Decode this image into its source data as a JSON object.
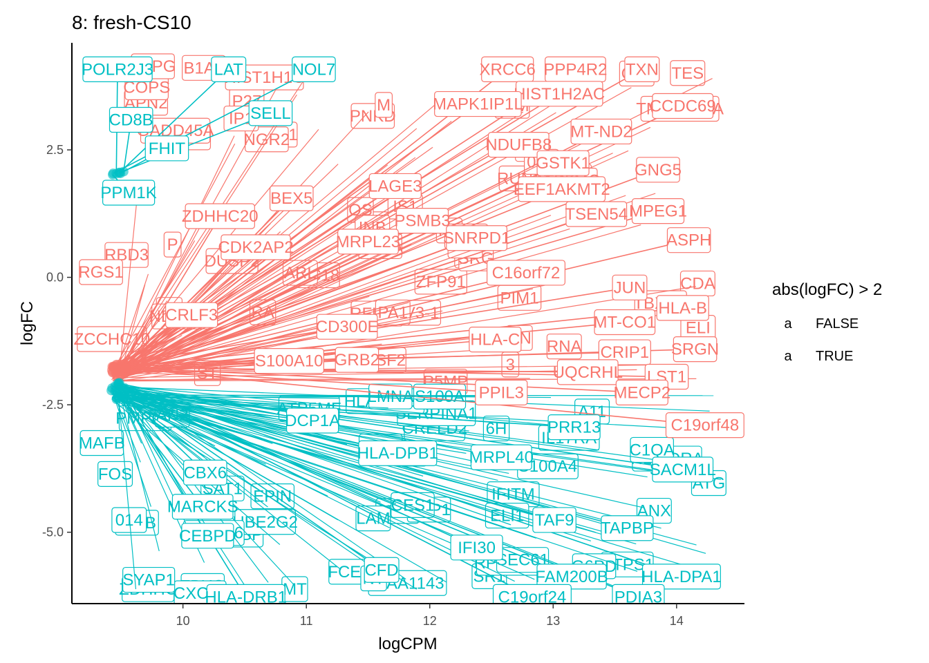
{
  "chart_data": {
    "type": "scatter",
    "title": "8: fresh-CS10",
    "xlabel": "logCPM",
    "ylabel": "logFC",
    "xlim": [
      9.1,
      14.55
    ],
    "ylim": [
      -6.4,
      4.6
    ],
    "x_ticks": [
      10,
      11,
      12,
      13,
      14
    ],
    "y_ticks": [
      2.5,
      0.0,
      -2.5,
      -5.0
    ],
    "x_tick_labels": [
      "10",
      "11",
      "12",
      "13",
      "14"
    ],
    "y_tick_labels": [
      "2.5",
      "0.0",
      "-2.5",
      "-5.0"
    ],
    "grid": false,
    "legend_position": "right",
    "legend": {
      "title": "abs(logFC) > 2",
      "entries": [
        {
          "key": "a",
          "label": "FALSE",
          "color": "#F8766D"
        },
        {
          "key": "a",
          "label": "TRUE",
          "color": "#00BFC4"
        }
      ]
    },
    "series": [
      {
        "group": "FALSE",
        "color": "#F8766D",
        "points": [
          {
            "gene": "XRCC6",
            "x": 12.63,
            "y": 4.08
          },
          {
            "gene": "PPP4R2",
            "x": 13.18,
            "y": 4.08
          },
          {
            "gene": "TXN",
            "x": 13.72,
            "y": 4.08
          },
          {
            "gene": "HIST1H2AC",
            "x": 13.05,
            "y": 3.6
          },
          {
            "gene": "MAPK1IP1L",
            "x": 12.39,
            "y": 3.4
          },
          {
            "gene": "CCDC69",
            "x": 14.05,
            "y": 3.36
          },
          {
            "gene": "MT-ND2",
            "x": 13.39,
            "y": 2.86
          },
          {
            "gene": "NDUFB8",
            "x": 12.72,
            "y": 2.6
          },
          {
            "gene": "GSTK1",
            "x": 13.08,
            "y": 2.24
          },
          {
            "gene": "GNG5",
            "x": 13.85,
            "y": 2.11
          },
          {
            "gene": "LAGE3",
            "x": 11.72,
            "y": 1.79
          },
          {
            "gene": "EEF1AKMT2",
            "x": 13.07,
            "y": 1.73
          },
          {
            "gene": "BEX5",
            "x": 10.88,
            "y": 1.55
          },
          {
            "gene": "PSMB3",
            "x": 11.94,
            "y": 1.11
          },
          {
            "gene": "MPEG1",
            "x": 13.85,
            "y": 1.3
          },
          {
            "gene": "ZDHHC20",
            "x": 10.3,
            "y": 1.2
          },
          {
            "gene": "TSEN54",
            "x": 13.35,
            "y": 1.24
          },
          {
            "gene": "MRPL23",
            "x": 11.5,
            "y": 0.7
          },
          {
            "gene": "SNRPD1",
            "x": 12.38,
            "y": 0.77
          },
          {
            "gene": "ASPH",
            "x": 14.1,
            "y": 0.73
          },
          {
            "gene": "CDK2AP2",
            "x": 10.59,
            "y": 0.59
          },
          {
            "gene": "C16orf72",
            "x": 12.78,
            "y": 0.09
          },
          {
            "gene": "JUN",
            "x": 13.62,
            "y": -0.2
          },
          {
            "gene": "HLA-B",
            "x": 14.05,
            "y": -0.6
          },
          {
            "gene": "CRLF3",
            "x": 10.07,
            "y": -0.74
          },
          {
            "gene": "CD300E",
            "x": 11.33,
            "y": -0.97
          },
          {
            "gene": "MT-CO1",
            "x": 13.58,
            "y": -0.88
          },
          {
            "gene": "HLA-C",
            "x": 12.53,
            "y": -1.22
          },
          {
            "gene": "SRGN",
            "x": 14.15,
            "y": -1.41
          },
          {
            "gene": "CRIP1",
            "x": 13.58,
            "y": -1.47
          },
          {
            "gene": "S100A10",
            "x": 10.86,
            "y": -1.64
          },
          {
            "gene": "GRB2",
            "x": 11.41,
            "y": -1.62
          },
          {
            "gene": "UQCRHL",
            "x": 13.28,
            "y": -1.86
          },
          {
            "gene": "LST1",
            "x": 13.92,
            "y": -1.95
          },
          {
            "gene": "PPIL3",
            "x": 12.58,
            "y": -2.26
          },
          {
            "gene": "MECP2",
            "x": 13.72,
            "y": -2.26
          },
          {
            "gene": "C19orf48",
            "x": 14.23,
            "y": -2.9
          }
        ]
      },
      {
        "group": "TRUE",
        "color": "#00BFC4",
        "points": [
          {
            "gene": "POLR2J3",
            "x": 9.47,
            "y": 4.08
          },
          {
            "gene": "LAT",
            "x": 10.37,
            "y": 4.08
          },
          {
            "gene": "NOL7",
            "x": 11.06,
            "y": 4.08
          },
          {
            "gene": "CD8B",
            "x": 9.58,
            "y": 3.09
          },
          {
            "gene": "SELL",
            "x": 10.71,
            "y": 3.22
          },
          {
            "gene": "FHIT",
            "x": 9.87,
            "y": 2.53
          },
          {
            "gene": "PPM1K",
            "x": 9.56,
            "y": 1.66
          },
          {
            "gene": "DCP1A",
            "x": 11.05,
            "y": -2.81
          },
          {
            "gene": "PRR13",
            "x": 13.17,
            "y": -2.94
          },
          {
            "gene": "HLA-DPB1",
            "x": 11.74,
            "y": -3.45
          },
          {
            "gene": "MRPL40",
            "x": 12.58,
            "y": -3.53
          },
          {
            "gene": "SACM1L",
            "x": 14.05,
            "y": -3.77
          },
          {
            "gene": "CBX6",
            "x": 10.18,
            "y": -3.83
          },
          {
            "gene": "MARCKS",
            "x": 10.16,
            "y": -4.5
          },
          {
            "gene": "TAF9",
            "x": 13.01,
            "y": -4.76
          },
          {
            "gene": "TAPBP",
            "x": 13.6,
            "y": -4.92
          },
          {
            "gene": "CEBPD",
            "x": 10.2,
            "y": -5.07
          },
          {
            "gene": "IFI30",
            "x": 12.38,
            "y": -5.3
          },
          {
            "gene": "CFD",
            "x": 11.61,
            "y": -5.74
          },
          {
            "gene": "FAM200B",
            "x": 13.15,
            "y": -5.87
          },
          {
            "gene": "HLA-DPA1",
            "x": 14.04,
            "y": -5.87
          },
          {
            "gene": "HLA-DRB1",
            "x": 10.51,
            "y": -6.27
          },
          {
            "gene": "C19orf24",
            "x": 12.83,
            "y": -6.27
          },
          {
            "gene": "PDIA3",
            "x": 13.69,
            "y": -6.27
          }
        ]
      }
    ],
    "annotations": {
      "description_note": "",
      "background_labels_false": [
        "IS1",
        "AK",
        "NA",
        "APN2",
        "LS",
        "PMT1",
        "3",
        "ERV3-1",
        "CN",
        "PE",
        "ST",
        "TES",
        "P",
        "ELI",
        "OS",
        "PIM1",
        "B1A1",
        "RFLNB",
        "ZFP91",
        "ENC",
        "OC18",
        "COPS",
        "P27",
        "PA1",
        "SRG",
        "SLC",
        "NDUFV1",
        "8RSF2",
        "RBD3",
        "RUNX1",
        "CDA",
        "INB",
        "PNKD",
        "ABRA",
        "RA",
        "RNA",
        "NGR2",
        "CFL",
        "TMEM167A",
        "ATP5MC",
        "P5MP",
        "ARL",
        "DUSP2",
        "SP",
        "HIST1H1C",
        "RGS1",
        "PSM",
        "GLPG",
        "M",
        "LSM8",
        "GADD45A",
        "TBXAS",
        "ZCCHC10",
        "0B1",
        "P5M",
        "IP1"
      ],
      "background_labels_true": [
        "FBXO",
        "ZDHHC",
        "CRELD2",
        "CTPS1",
        "KIAA1143",
        "EPIN",
        "IGFB",
        "FABP",
        "G6PD",
        "CXCL8",
        "SR1",
        "FCER",
        "CTSS",
        "MAFB",
        "OSTC",
        "ATP5MF",
        "S100A4",
        "UBE2G2",
        "PMPCA",
        "SYAP1",
        "S100A6",
        "FOS",
        "LAM",
        "SERPINA1",
        "UPP1",
        "AN2",
        "IFITM",
        "HLA-DRA",
        "HLA-DRB5",
        "ANX",
        "PHB",
        "A11",
        "S100A",
        "6H",
        "NT",
        "ATG",
        "ELI1",
        "IL17RA",
        "CES1",
        "C1QA",
        "014",
        "LMNA",
        "RPS6KA3",
        "SEC61",
        "SAT1",
        "MT"
      ]
    }
  }
}
